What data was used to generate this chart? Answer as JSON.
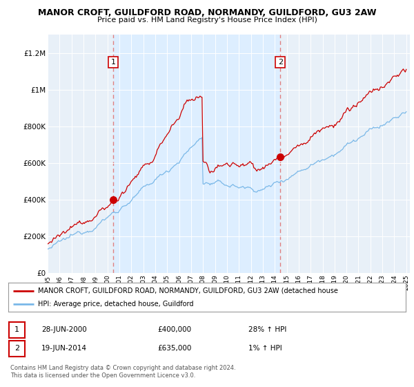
{
  "title": "MANOR CROFT, GUILDFORD ROAD, NORMANDY, GUILDFORD, GU3 2AW",
  "subtitle": "Price paid vs. HM Land Registry's House Price Index (HPI)",
  "ylim": [
    0,
    1300000
  ],
  "yticks": [
    0,
    200000,
    400000,
    600000,
    800000,
    1000000,
    1200000
  ],
  "ytick_labels": [
    "£0",
    "£200K",
    "£400K",
    "£600K",
    "£800K",
    "£1M",
    "£1.2M"
  ],
  "sale1_year": 2000.49,
  "sale1_price": 400000,
  "sale2_year": 2014.47,
  "sale2_price": 635000,
  "legend_line1": "MANOR CROFT, GUILDFORD ROAD, NORMANDY, GUILDFORD, GU3 2AW (detached house",
  "legend_line2": "HPI: Average price, detached house, Guildford",
  "table_row1": [
    "1",
    "28-JUN-2000",
    "£400,000",
    "28% ↑ HPI"
  ],
  "table_row2": [
    "2",
    "19-JUN-2014",
    "£635,000",
    "1% ↑ HPI"
  ],
  "footer": "Contains HM Land Registry data © Crown copyright and database right 2024.\nThis data is licensed under the Open Government Licence v3.0.",
  "hpi_color": "#7ab8e8",
  "price_color": "#cc0000",
  "dashed_color": "#e08080",
  "highlight_color": "#ddeeff",
  "plot_bg_color": "#e8f0f8",
  "background_color": "#ffffff"
}
